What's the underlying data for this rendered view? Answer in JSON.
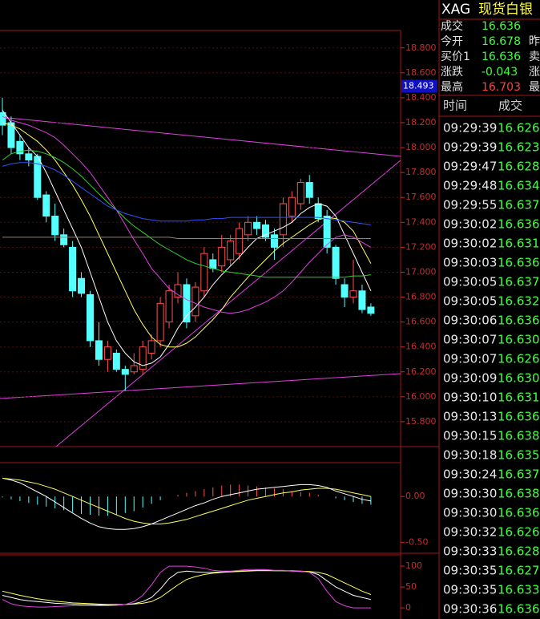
{
  "chart_data": [
    {
      "type": "candlestick",
      "ylim": [
        15.6,
        18.94
      ],
      "grid": true,
      "up_color": "#ff5050",
      "down_color": "#54ffff",
      "marker": 18.493,
      "marker_color": "#1010c0",
      "yticks": [
        {
          "value": 15.8,
          "label": "15.800"
        },
        {
          "value": 16.0,
          "label": "16.000"
        },
        {
          "value": 16.2,
          "label": "16.200"
        },
        {
          "value": 16.4,
          "label": "16.400"
        },
        {
          "value": 16.6,
          "label": "16.600"
        },
        {
          "value": 16.8,
          "label": "16.800"
        },
        {
          "value": 17.0,
          "label": "17.000"
        },
        {
          "value": 17.2,
          "label": "17.200"
        },
        {
          "value": 17.4,
          "label": "17.400"
        },
        {
          "value": 17.6,
          "label": "17.600"
        },
        {
          "value": 17.8,
          "label": "17.800"
        },
        {
          "value": 18.0,
          "label": "18.000"
        },
        {
          "value": 18.2,
          "label": "18.200"
        },
        {
          "value": 18.4,
          "label": "18.400"
        },
        {
          "value": 18.6,
          "label": "18.600"
        },
        {
          "value": 18.8,
          "label": "18.800"
        }
      ],
      "open": [
        18.28,
        18.2,
        18.05,
        17.95,
        17.93,
        17.62,
        17.45,
        17.3,
        17.2,
        16.95,
        16.82,
        16.45,
        16.3,
        16.35,
        16.22,
        16.2,
        16.22,
        16.35,
        16.45,
        16.6,
        16.8,
        16.9,
        16.65,
        16.85,
        17.1,
        17.05,
        17.1,
        17.15,
        17.3,
        17.4,
        17.38,
        17.3,
        17.3,
        17.45,
        17.55,
        17.72,
        17.55,
        17.45,
        17.2,
        16.9,
        16.8,
        16.85,
        16.72
      ],
      "close": [
        18.18,
        18.0,
        17.95,
        17.9,
        17.6,
        17.45,
        17.3,
        17.22,
        16.85,
        16.83,
        16.45,
        16.3,
        16.4,
        16.22,
        16.18,
        16.25,
        16.4,
        16.45,
        16.75,
        16.85,
        16.9,
        16.6,
        16.88,
        17.15,
        17.03,
        17.2,
        17.25,
        17.35,
        17.4,
        17.35,
        17.28,
        17.2,
        17.55,
        17.6,
        17.72,
        17.6,
        17.43,
        17.2,
        16.95,
        16.8,
        16.85,
        16.7,
        16.67
      ],
      "high": [
        18.4,
        18.25,
        18.1,
        18.0,
        17.95,
        17.65,
        17.55,
        17.35,
        17.25,
        17.0,
        16.85,
        16.6,
        16.45,
        16.38,
        16.25,
        16.35,
        16.45,
        16.5,
        16.8,
        16.9,
        17.0,
        16.95,
        16.92,
        17.2,
        17.15,
        17.3,
        17.3,
        17.4,
        17.45,
        17.45,
        17.42,
        17.35,
        17.6,
        17.65,
        17.75,
        17.78,
        17.6,
        17.5,
        17.22,
        16.95,
        17.1,
        16.9,
        16.75
      ],
      "low": [
        18.1,
        17.95,
        17.9,
        17.85,
        17.58,
        17.4,
        17.25,
        17.2,
        16.8,
        16.8,
        16.4,
        16.25,
        16.2,
        16.2,
        16.05,
        16.18,
        16.18,
        16.3,
        16.4,
        16.55,
        16.75,
        16.55,
        16.6,
        16.8,
        17.0,
        17.0,
        17.05,
        17.1,
        17.25,
        17.3,
        17.25,
        17.1,
        17.2,
        17.4,
        17.5,
        17.55,
        17.4,
        17.15,
        16.9,
        16.72,
        16.75,
        16.67,
        16.65
      ],
      "series": [
        {
          "color": "#ffffff",
          "values": [
            18.3,
            18.2,
            18.1,
            18.0,
            17.93,
            17.8,
            17.65,
            17.5,
            17.35,
            17.2,
            17.0,
            16.8,
            16.6,
            16.45,
            16.35,
            16.28,
            16.25,
            16.27,
            16.32,
            16.42,
            16.55,
            16.65,
            16.72,
            16.8,
            16.9,
            16.98,
            17.05,
            17.12,
            17.2,
            17.27,
            17.3,
            17.33,
            17.36,
            17.4,
            17.47,
            17.52,
            17.55,
            17.53,
            17.45,
            17.3,
            17.15,
            17.0,
            16.85
          ]
        },
        {
          "color": "#ffff60",
          "values": [
            18.2,
            18.18,
            18.15,
            18.1,
            18.05,
            17.98,
            17.9,
            17.8,
            17.7,
            17.58,
            17.45,
            17.3,
            17.15,
            17.0,
            16.85,
            16.7,
            16.58,
            16.48,
            16.42,
            16.4,
            16.4,
            16.43,
            16.48,
            16.55,
            16.62,
            16.7,
            16.8,
            16.88,
            16.96,
            17.03,
            17.1,
            17.17,
            17.23,
            17.28,
            17.33,
            17.38,
            17.42,
            17.44,
            17.43,
            17.4,
            17.33,
            17.2,
            17.07
          ]
        },
        {
          "color": "#e040e0",
          "values": [
            18.25,
            18.22,
            18.2,
            18.18,
            18.15,
            18.12,
            18.08,
            18.02,
            17.95,
            17.88,
            17.8,
            17.7,
            17.6,
            17.5,
            17.38,
            17.26,
            17.15,
            17.03,
            16.95,
            16.87,
            16.82,
            16.78,
            16.75,
            16.72,
            16.7,
            16.68,
            16.67,
            16.68,
            16.7,
            16.73,
            16.76,
            16.8,
            16.85,
            16.92,
            17.0,
            17.08,
            17.15,
            17.22,
            17.28,
            17.3,
            17.28,
            17.24,
            17.2
          ]
        },
        {
          "color": "#30d030",
          "values": [
            17.9,
            17.95,
            17.97,
            17.98,
            17.97,
            17.95,
            17.92,
            17.88,
            17.83,
            17.77,
            17.7,
            17.63,
            17.56,
            17.5,
            17.43,
            17.37,
            17.32,
            17.27,
            17.22,
            17.18,
            17.14,
            17.1,
            17.07,
            17.05,
            17.03,
            17.01,
            17.0,
            16.99,
            16.98,
            16.97,
            16.96,
            16.96,
            16.96,
            16.96,
            16.96,
            16.96,
            16.96,
            16.96,
            16.96,
            16.96,
            16.97,
            16.97,
            16.98
          ]
        },
        {
          "color": "#3050ff",
          "values": [
            17.85,
            17.87,
            17.88,
            17.88,
            17.87,
            17.85,
            17.82,
            17.78,
            17.73,
            17.68,
            17.63,
            17.58,
            17.53,
            17.5,
            17.47,
            17.45,
            17.43,
            17.42,
            17.41,
            17.41,
            17.41,
            17.41,
            17.42,
            17.42,
            17.43,
            17.43,
            17.44,
            17.44,
            17.44,
            17.44,
            17.44,
            17.44,
            17.44,
            17.44,
            17.44,
            17.44,
            17.44,
            17.43,
            17.42,
            17.41,
            17.4,
            17.39,
            17.38
          ]
        },
        {
          "color": "#9a8070",
          "values": [
            17.28,
            17.28,
            17.28,
            17.28,
            17.28,
            17.28,
            17.28,
            17.28,
            17.28,
            17.28,
            17.28,
            17.28,
            17.28,
            17.28,
            17.28,
            17.28,
            17.28,
            17.28,
            17.28,
            17.28,
            17.27,
            17.27,
            17.27,
            17.27,
            17.27,
            17.27,
            17.27,
            17.27,
            17.27,
            17.27,
            17.27,
            17.27,
            17.27,
            17.27,
            17.27,
            17.27,
            17.27,
            17.27,
            17.27,
            17.27,
            17.27,
            17.27,
            17.27
          ]
        }
      ]
    },
    {
      "type": "macd",
      "ylim": [
        -0.62,
        0.37
      ],
      "grid": false,
      "up_color": "#ff5050",
      "down_color": "#54ffff",
      "yticks": [
        {
          "value": -0.5,
          "label": "-0.50"
        },
        {
          "value": 0,
          "label": "0.00"
        }
      ],
      "histogram": [
        -0.01,
        -0.03,
        -0.05,
        -0.07,
        -0.09,
        -0.11,
        -0.13,
        -0.15,
        -0.17,
        -0.19,
        -0.2,
        -0.21,
        -0.21,
        -0.2,
        -0.18,
        -0.16,
        -0.12,
        -0.08,
        -0.04,
        0.0,
        0.02,
        0.04,
        0.06,
        0.08,
        0.1,
        0.12,
        0.13,
        0.13,
        0.12,
        0.11,
        0.1,
        0.09,
        0.08,
        0.06,
        0.05,
        0.04,
        0.02,
        0.0,
        -0.02,
        -0.04,
        -0.06,
        -0.08,
        -0.09
      ],
      "series": [
        {
          "color": "#ffffff",
          "values": [
            0.2,
            0.18,
            0.15,
            0.1,
            0.05,
            0,
            -0.06,
            -0.12,
            -0.18,
            -0.24,
            -0.29,
            -0.33,
            -0.35,
            -0.36,
            -0.36,
            -0.35,
            -0.33,
            -0.3,
            -0.26,
            -0.22,
            -0.18,
            -0.14,
            -0.1,
            -0.07,
            -0.03,
            0.0,
            0.02,
            0.04,
            0.06,
            0.08,
            0.09,
            0.1,
            0.11,
            0.12,
            0.13,
            0.13,
            0.12,
            0.1,
            0.06,
            0.03,
            0.0,
            -0.03,
            -0.05
          ]
        },
        {
          "color": "#ffff60",
          "values": [
            0.2,
            0.19,
            0.18,
            0.16,
            0.14,
            0.11,
            0.08,
            0.04,
            0.0,
            -0.04,
            -0.08,
            -0.12,
            -0.16,
            -0.2,
            -0.24,
            -0.27,
            -0.29,
            -0.3,
            -0.3,
            -0.29,
            -0.27,
            -0.25,
            -0.22,
            -0.19,
            -0.16,
            -0.13,
            -0.1,
            -0.07,
            -0.04,
            -0.02,
            0.0,
            0.02,
            0.04,
            0.05,
            0.07,
            0.08,
            0.09,
            0.09,
            0.08,
            0.06,
            0.04,
            0.02,
            0.0
          ]
        }
      ]
    },
    {
      "type": "line",
      "ylim": [
        -19,
        127
      ],
      "grid": false,
      "yticks": [
        0,
        50,
        100
      ],
      "series": [
        {
          "color": "#ffffff",
          "values": [
            30,
            25,
            20,
            17,
            15,
            13,
            11,
            10,
            9,
            8,
            8,
            7,
            7,
            7,
            8,
            10,
            15,
            25,
            45,
            70,
            85,
            88,
            86,
            85,
            85,
            86,
            87,
            88,
            89,
            90,
            90,
            89,
            89,
            88,
            87,
            86,
            80,
            65,
            50,
            40,
            30,
            25,
            20
          ]
        },
        {
          "color": "#ffff60",
          "values": [
            40,
            35,
            30,
            26,
            22,
            19,
            16,
            14,
            12,
            11,
            10,
            9,
            8,
            8,
            8,
            9,
            11,
            15,
            25,
            40,
            55,
            68,
            75,
            80,
            83,
            85,
            86,
            87,
            88,
            89,
            89,
            89,
            89,
            89,
            88,
            87,
            85,
            80,
            70,
            60,
            50,
            40,
            32
          ]
        },
        {
          "color": "#e040e0",
          "values": [
            20,
            10,
            5,
            3,
            2,
            2,
            3,
            4,
            5,
            5,
            5,
            5,
            5,
            6,
            8,
            15,
            30,
            55,
            85,
            100,
            100,
            100,
            98,
            95,
            90,
            88,
            88,
            90,
            92,
            92,
            92,
            90,
            90,
            88,
            88,
            85,
            70,
            40,
            15,
            5,
            0,
            0,
            0
          ]
        }
      ]
    }
  ],
  "quote": {
    "symbol": "XAG",
    "name": "现货白银",
    "rows": [
      {
        "label": "成交",
        "value": "16.636",
        "color": "#40ff40",
        "extra": ""
      },
      {
        "label": "今开",
        "value": "16.678",
        "color": "#40ff40",
        "extra": "昨"
      },
      {
        "label": "买价1",
        "value": "16.636",
        "color": "#40ff40",
        "extra": "卖"
      },
      {
        "label": "涨跌",
        "value": "-0.043",
        "color": "#40ff40",
        "extra": "涨"
      },
      {
        "label": "最高",
        "value": "16.703",
        "color": "#ff4040",
        "extra": "最"
      }
    ]
  },
  "trades": {
    "header": [
      "时间",
      "成交"
    ],
    "color": "#40ff40",
    "rows": [
      [
        "09:29:39",
        "16.626"
      ],
      [
        "09:29:39",
        "16.623"
      ],
      [
        "09:29:47",
        "16.628"
      ],
      [
        "09:29:48",
        "16.634"
      ],
      [
        "09:29:55",
        "16.637"
      ],
      [
        "09:30:02",
        "16.636"
      ],
      [
        "09:30:02",
        "16.631"
      ],
      [
        "09:30:03",
        "16.636"
      ],
      [
        "09:30:05",
        "16.637"
      ],
      [
        "09:30:05",
        "16.632"
      ],
      [
        "09:30:06",
        "16.636"
      ],
      [
        "09:30:07",
        "16.630"
      ],
      [
        "09:30:07",
        "16.626"
      ],
      [
        "09:30:09",
        "16.630"
      ],
      [
        "09:30:10",
        "16.631"
      ],
      [
        "09:30:13",
        "16.636"
      ],
      [
        "09:30:15",
        "16.638"
      ],
      [
        "09:30:18",
        "16.635"
      ],
      [
        "09:30:24",
        "16.637"
      ],
      [
        "09:30:30",
        "16.638"
      ],
      [
        "09:30:30",
        "16.636"
      ],
      [
        "09:30:32",
        "16.626"
      ],
      [
        "09:30:33",
        "16.628"
      ],
      [
        "09:30:35",
        "16.627"
      ],
      [
        "09:30:35",
        "16.633"
      ],
      [
        "09:30:36",
        "16.636"
      ]
    ]
  }
}
